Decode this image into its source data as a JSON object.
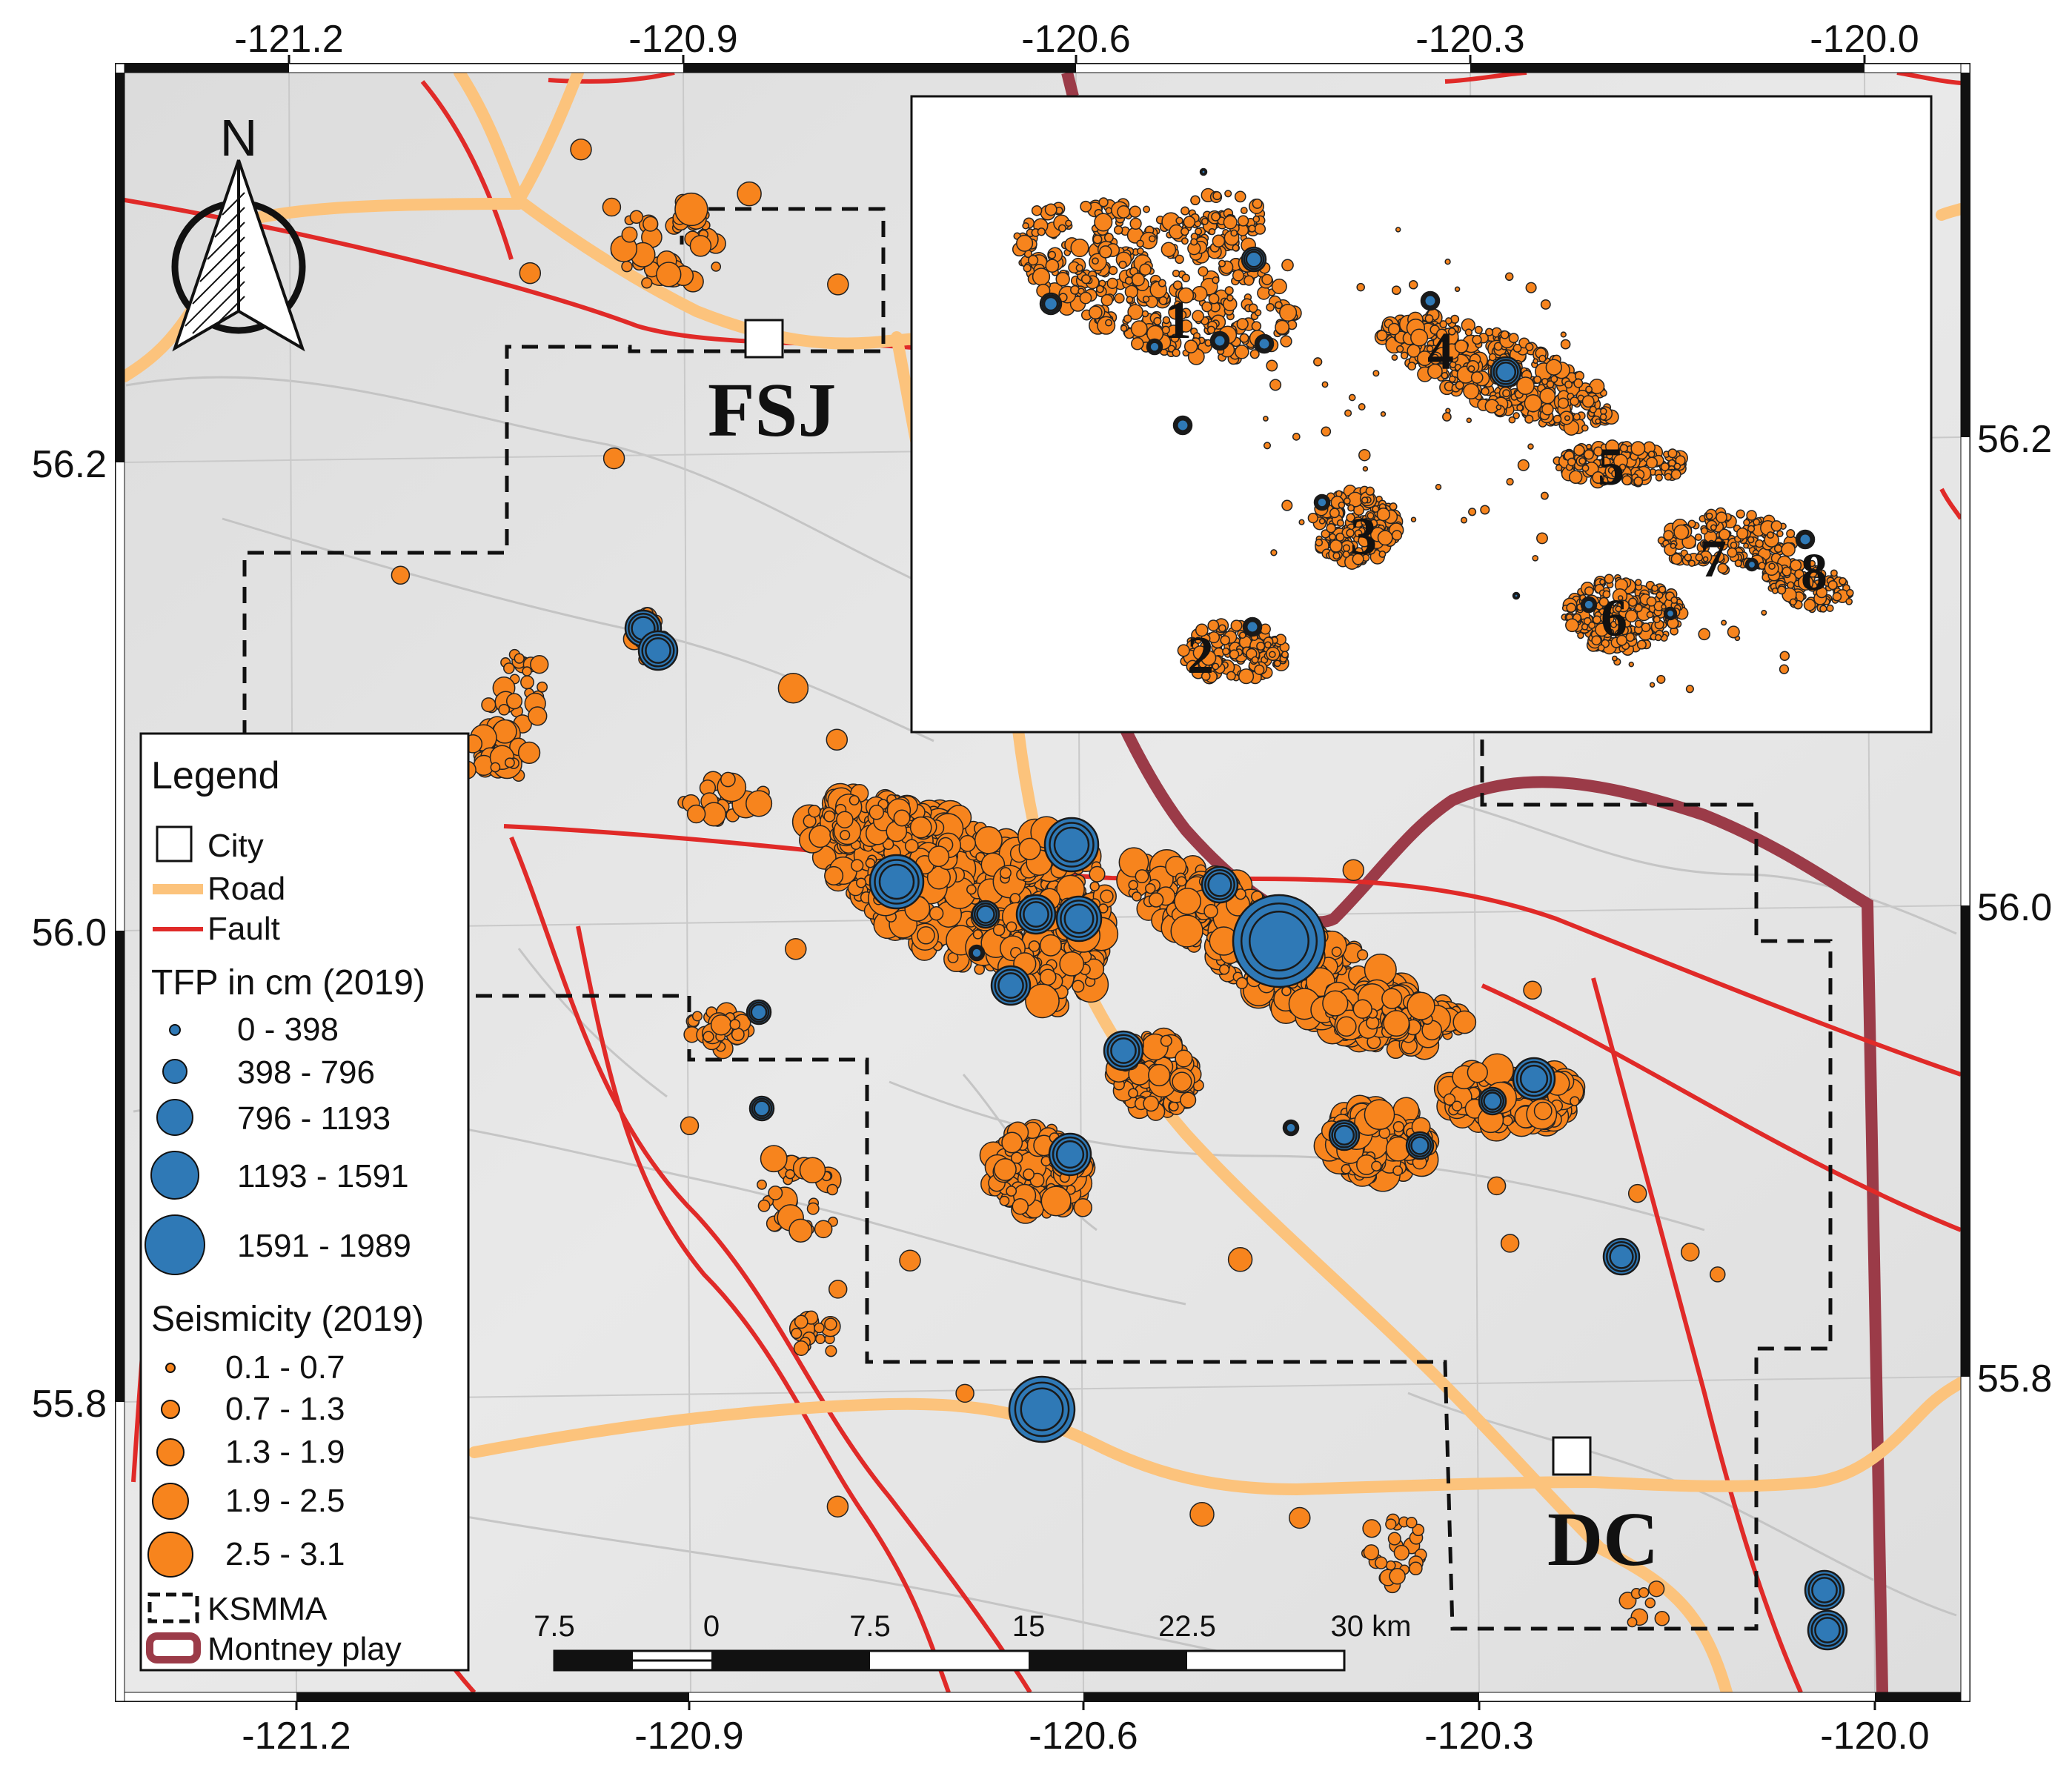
{
  "colors": {
    "background": "#e6e6e6",
    "hillshade": "#cfcfcf",
    "road": "#fcc37c",
    "fault": "#e02a28",
    "montney": "#9b3b48",
    "ksmma": "#111111",
    "seismicity": "#f7841d",
    "tfp": "#2f79b6",
    "city": "#ffffff"
  },
  "axes": {
    "lon_ticks": [
      "-121.2",
      "-120.9",
      "-120.6",
      "-120.3",
      "-120.0"
    ],
    "lat_ticks": [
      "56.2",
      "56.0",
      "55.8"
    ]
  },
  "north_arrow": {
    "label": "N"
  },
  "cities": [
    {
      "name": "FSJ",
      "lon": -120.85,
      "lat": 56.25
    },
    {
      "name": "DC",
      "lon": -120.24,
      "lat": 55.76
    }
  ],
  "inset": {
    "labels": [
      "1",
      "2",
      "3",
      "4",
      "5",
      "6",
      "7",
      "8"
    ]
  },
  "legend": {
    "title": "Legend",
    "city": "City",
    "road": "Road",
    "fault": "Fault",
    "tfp_title": "TFP in cm (2019)",
    "tfp_classes": [
      "0 - 398",
      "398 - 796",
      "796 - 1193",
      "1193 - 1591",
      "1591 - 1989"
    ],
    "seis_title": "Seismicity (2019)",
    "seis_classes": [
      "0.1 - 0.7",
      "0.7 - 1.3",
      "1.3 - 1.9",
      "1.9 - 2.5",
      "2.5 - 3.1"
    ],
    "ksmma": "KSMMA",
    "montney": "Montney play"
  },
  "scale_bar": {
    "labels": [
      "7.5",
      "0",
      "7.5",
      "15",
      "22.5",
      "30 km"
    ]
  }
}
